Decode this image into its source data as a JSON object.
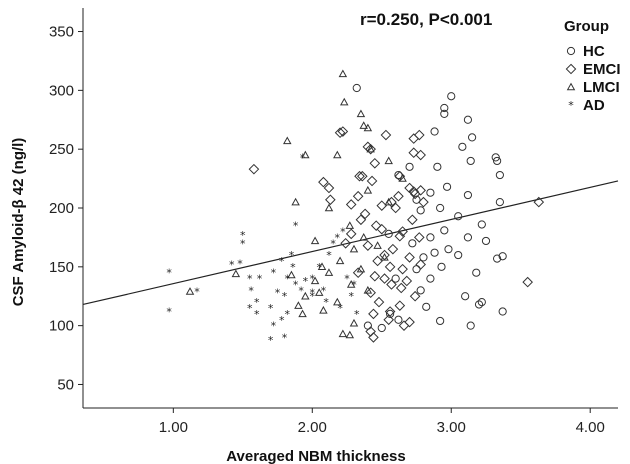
{
  "chart_data": {
    "type": "scatter",
    "title": "",
    "annotation": "r=0.250, P<0.001",
    "xlabel": "Averaged NBM thickness",
    "ylabel": "CSF Amyloid-β 42 (ng/l)",
    "xlim": [
      0.35,
      4.2
    ],
    "ylim": [
      30,
      370
    ],
    "xticks": [
      1.0,
      2.0,
      3.0,
      4.0
    ],
    "xtick_labels": [
      "1.00",
      "2.00",
      "3.00",
      "4.00"
    ],
    "yticks": [
      50,
      100,
      150,
      200,
      250,
      300,
      350
    ],
    "ytick_labels": [
      "50",
      "100",
      "150",
      "200",
      "250",
      "300",
      "350"
    ],
    "grid": false,
    "legend_title": "Group",
    "legend_position": "top-right",
    "fit_line": {
      "x": [
        0.35,
        4.2
      ],
      "y": [
        118,
        223
      ]
    },
    "series": [
      {
        "name": "HC",
        "marker": "circle",
        "points": [
          [
            2.32,
            302
          ],
          [
            3.0,
            295
          ],
          [
            2.95,
            285
          ],
          [
            2.95,
            280
          ],
          [
            3.12,
            275
          ],
          [
            2.88,
            265
          ],
          [
            3.15,
            260
          ],
          [
            3.08,
            252
          ],
          [
            3.32,
            243
          ],
          [
            3.33,
            240
          ],
          [
            3.14,
            240
          ],
          [
            2.9,
            235
          ],
          [
            2.7,
            235
          ],
          [
            3.35,
            228
          ],
          [
            2.62,
            228
          ],
          [
            2.97,
            218
          ],
          [
            2.85,
            213
          ],
          [
            3.12,
            211
          ],
          [
            2.75,
            207
          ],
          [
            3.35,
            205
          ],
          [
            2.92,
            200
          ],
          [
            2.78,
            198
          ],
          [
            3.05,
            193
          ],
          [
            3.22,
            186
          ],
          [
            2.95,
            181
          ],
          [
            2.55,
            178
          ],
          [
            3.12,
            175
          ],
          [
            2.85,
            175
          ],
          [
            3.25,
            172
          ],
          [
            2.72,
            170
          ],
          [
            2.98,
            165
          ],
          [
            2.88,
            162
          ],
          [
            3.05,
            160
          ],
          [
            2.8,
            158
          ],
          [
            3.37,
            159
          ],
          [
            3.33,
            157
          ],
          [
            2.93,
            150
          ],
          [
            2.75,
            148
          ],
          [
            3.18,
            145
          ],
          [
            2.85,
            140
          ],
          [
            2.6,
            140
          ],
          [
            2.78,
            130
          ],
          [
            3.1,
            125
          ],
          [
            3.22,
            120
          ],
          [
            3.2,
            118
          ],
          [
            2.82,
            116
          ],
          [
            3.37,
            112
          ],
          [
            2.56,
            110
          ],
          [
            2.62,
            105
          ],
          [
            2.92,
            104
          ],
          [
            3.14,
            100
          ],
          [
            2.4,
            100
          ],
          [
            2.5,
            98
          ]
        ]
      },
      {
        "name": "EMCI",
        "marker": "diamond",
        "points": [
          [
            2.22,
            265
          ],
          [
            2.2,
            264
          ],
          [
            2.4,
            252
          ],
          [
            2.42,
            250
          ],
          [
            2.53,
            262
          ],
          [
            2.73,
            259
          ],
          [
            2.77,
            262
          ],
          [
            2.73,
            247
          ],
          [
            2.78,
            245
          ],
          [
            2.45,
            238
          ],
          [
            2.34,
            227
          ],
          [
            2.36,
            227
          ],
          [
            2.63,
            227
          ],
          [
            1.58,
            233
          ],
          [
            2.43,
            223
          ],
          [
            2.08,
            222
          ],
          [
            2.12,
            217
          ],
          [
            2.7,
            217
          ],
          [
            2.78,
            215
          ],
          [
            2.73,
            214
          ],
          [
            2.74,
            212
          ],
          [
            2.62,
            210
          ],
          [
            2.33,
            210
          ],
          [
            2.13,
            207
          ],
          [
            2.57,
            205
          ],
          [
            2.8,
            205
          ],
          [
            2.5,
            202
          ],
          [
            2.28,
            203
          ],
          [
            2.6,
            200
          ],
          [
            2.38,
            195
          ],
          [
            2.35,
            190
          ],
          [
            2.72,
            190
          ],
          [
            2.46,
            185
          ],
          [
            2.5,
            182
          ],
          [
            2.65,
            180
          ],
          [
            2.28,
            178
          ],
          [
            2.63,
            176
          ],
          [
            2.77,
            175
          ],
          [
            2.24,
            170
          ],
          [
            2.4,
            168
          ],
          [
            2.58,
            165
          ],
          [
            2.52,
            160
          ],
          [
            2.7,
            158
          ],
          [
            2.47,
            155
          ],
          [
            2.78,
            152
          ],
          [
            2.56,
            150
          ],
          [
            2.65,
            148
          ],
          [
            2.33,
            145
          ],
          [
            2.45,
            142
          ],
          [
            2.52,
            140
          ],
          [
            2.68,
            138
          ],
          [
            2.57,
            135
          ],
          [
            2.64,
            132
          ],
          [
            2.42,
            128
          ],
          [
            2.74,
            125
          ],
          [
            2.48,
            120
          ],
          [
            2.63,
            117
          ],
          [
            2.56,
            112
          ],
          [
            2.44,
            110
          ],
          [
            2.55,
            105
          ],
          [
            2.7,
            103
          ],
          [
            2.66,
            100
          ],
          [
            2.42,
            95
          ],
          [
            2.44,
            90
          ],
          [
            3.63,
            205
          ],
          [
            3.55,
            137
          ]
        ]
      },
      {
        "name": "LMCI",
        "marker": "triangle",
        "points": [
          [
            2.22,
            314
          ],
          [
            2.23,
            290
          ],
          [
            2.35,
            280
          ],
          [
            2.37,
            270
          ],
          [
            2.4,
            268
          ],
          [
            2.42,
            250
          ],
          [
            2.18,
            245
          ],
          [
            1.95,
            245
          ],
          [
            2.55,
            240
          ],
          [
            1.82,
            257
          ],
          [
            1.88,
            205
          ],
          [
            2.65,
            225
          ],
          [
            2.4,
            215
          ],
          [
            2.55,
            205
          ],
          [
            2.12,
            200
          ],
          [
            2.27,
            185
          ],
          [
            2.37,
            175
          ],
          [
            2.02,
            172
          ],
          [
            2.47,
            168
          ],
          [
            2.3,
            165
          ],
          [
            2.52,
            158
          ],
          [
            2.2,
            155
          ],
          [
            2.07,
            150
          ],
          [
            2.35,
            148
          ],
          [
            2.12,
            145
          ],
          [
            1.85,
            143
          ],
          [
            2.02,
            138
          ],
          [
            2.28,
            135
          ],
          [
            2.4,
            130
          ],
          [
            2.05,
            128
          ],
          [
            1.95,
            125
          ],
          [
            2.18,
            120
          ],
          [
            1.9,
            117
          ],
          [
            2.08,
            113
          ],
          [
            1.93,
            110
          ],
          [
            2.3,
            102
          ],
          [
            2.22,
            93
          ],
          [
            2.27,
            92
          ],
          [
            1.12,
            129
          ],
          [
            1.45,
            144
          ]
        ]
      },
      {
        "name": "AD",
        "marker": "star",
        "points": [
          [
            0.97,
            145
          ],
          [
            0.97,
            112
          ],
          [
            1.17,
            129
          ],
          [
            1.42,
            152
          ],
          [
            1.5,
            177
          ],
          [
            1.5,
            170
          ],
          [
            1.48,
            153
          ],
          [
            1.55,
            140
          ],
          [
            1.62,
            140
          ],
          [
            1.56,
            130
          ],
          [
            1.6,
            120
          ],
          [
            1.55,
            115
          ],
          [
            1.6,
            110
          ],
          [
            1.72,
            145
          ],
          [
            1.78,
            155
          ],
          [
            1.85,
            160
          ],
          [
            1.86,
            150
          ],
          [
            1.82,
            140
          ],
          [
            1.88,
            135
          ],
          [
            1.75,
            128
          ],
          [
            1.8,
            125
          ],
          [
            1.7,
            115
          ],
          [
            1.82,
            110
          ],
          [
            1.92,
            130
          ],
          [
            1.95,
            138
          ],
          [
            2.0,
            140
          ],
          [
            2.05,
            150
          ],
          [
            2.12,
            160
          ],
          [
            2.15,
            170
          ],
          [
            2.18,
            175
          ],
          [
            2.22,
            180
          ],
          [
            2.08,
            130
          ],
          [
            2.0,
            125
          ],
          [
            2.1,
            120
          ],
          [
            2.2,
            115
          ],
          [
            1.78,
            105
          ],
          [
            1.72,
            100
          ],
          [
            1.8,
            90
          ],
          [
            1.7,
            88
          ],
          [
            1.88,
            185
          ],
          [
            1.93,
            243
          ],
          [
            2.0,
            128
          ],
          [
            2.25,
            140
          ],
          [
            2.3,
            135
          ],
          [
            2.28,
            125
          ],
          [
            2.32,
            110
          ]
        ]
      }
    ]
  }
}
